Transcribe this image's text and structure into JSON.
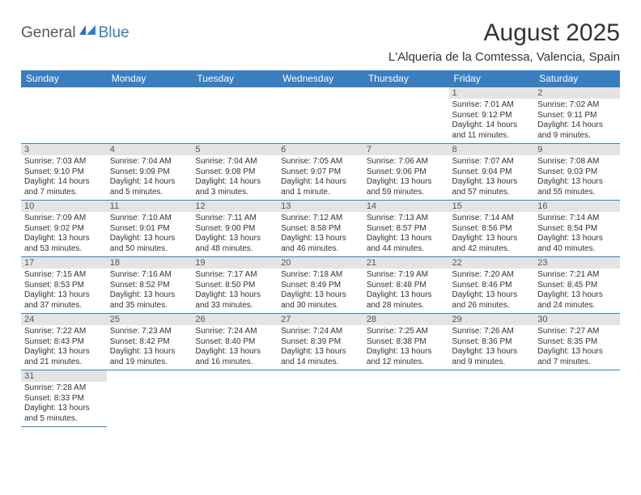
{
  "logo": {
    "general": "General",
    "blue": "Blue"
  },
  "title": "August 2025",
  "location": "L'Alqueria de la Comtessa, Valencia, Spain",
  "colors": {
    "header_bg": "#3a7ebf",
    "header_text": "#ffffff",
    "daynum_bg": "#e4e4e4",
    "border": "#3a7ebf",
    "text": "#333333",
    "logo_gray": "#57585a",
    "logo_blue": "#3a7ebf"
  },
  "weekdays": [
    "Sunday",
    "Monday",
    "Tuesday",
    "Wednesday",
    "Thursday",
    "Friday",
    "Saturday"
  ],
  "weeks": [
    [
      null,
      null,
      null,
      null,
      null,
      {
        "d": "1",
        "sr": "Sunrise: 7:01 AM",
        "ss": "Sunset: 9:12 PM",
        "dl1": "Daylight: 14 hours",
        "dl2": "and 11 minutes."
      },
      {
        "d": "2",
        "sr": "Sunrise: 7:02 AM",
        "ss": "Sunset: 9:11 PM",
        "dl1": "Daylight: 14 hours",
        "dl2": "and 9 minutes."
      }
    ],
    [
      {
        "d": "3",
        "sr": "Sunrise: 7:03 AM",
        "ss": "Sunset: 9:10 PM",
        "dl1": "Daylight: 14 hours",
        "dl2": "and 7 minutes."
      },
      {
        "d": "4",
        "sr": "Sunrise: 7:04 AM",
        "ss": "Sunset: 9:09 PM",
        "dl1": "Daylight: 14 hours",
        "dl2": "and 5 minutes."
      },
      {
        "d": "5",
        "sr": "Sunrise: 7:04 AM",
        "ss": "Sunset: 9:08 PM",
        "dl1": "Daylight: 14 hours",
        "dl2": "and 3 minutes."
      },
      {
        "d": "6",
        "sr": "Sunrise: 7:05 AM",
        "ss": "Sunset: 9:07 PM",
        "dl1": "Daylight: 14 hours",
        "dl2": "and 1 minute."
      },
      {
        "d": "7",
        "sr": "Sunrise: 7:06 AM",
        "ss": "Sunset: 9:06 PM",
        "dl1": "Daylight: 13 hours",
        "dl2": "and 59 minutes."
      },
      {
        "d": "8",
        "sr": "Sunrise: 7:07 AM",
        "ss": "Sunset: 9:04 PM",
        "dl1": "Daylight: 13 hours",
        "dl2": "and 57 minutes."
      },
      {
        "d": "9",
        "sr": "Sunrise: 7:08 AM",
        "ss": "Sunset: 9:03 PM",
        "dl1": "Daylight: 13 hours",
        "dl2": "and 55 minutes."
      }
    ],
    [
      {
        "d": "10",
        "sr": "Sunrise: 7:09 AM",
        "ss": "Sunset: 9:02 PM",
        "dl1": "Daylight: 13 hours",
        "dl2": "and 53 minutes."
      },
      {
        "d": "11",
        "sr": "Sunrise: 7:10 AM",
        "ss": "Sunset: 9:01 PM",
        "dl1": "Daylight: 13 hours",
        "dl2": "and 50 minutes."
      },
      {
        "d": "12",
        "sr": "Sunrise: 7:11 AM",
        "ss": "Sunset: 9:00 PM",
        "dl1": "Daylight: 13 hours",
        "dl2": "and 48 minutes."
      },
      {
        "d": "13",
        "sr": "Sunrise: 7:12 AM",
        "ss": "Sunset: 8:58 PM",
        "dl1": "Daylight: 13 hours",
        "dl2": "and 46 minutes."
      },
      {
        "d": "14",
        "sr": "Sunrise: 7:13 AM",
        "ss": "Sunset: 8:57 PM",
        "dl1": "Daylight: 13 hours",
        "dl2": "and 44 minutes."
      },
      {
        "d": "15",
        "sr": "Sunrise: 7:14 AM",
        "ss": "Sunset: 8:56 PM",
        "dl1": "Daylight: 13 hours",
        "dl2": "and 42 minutes."
      },
      {
        "d": "16",
        "sr": "Sunrise: 7:14 AM",
        "ss": "Sunset: 8:54 PM",
        "dl1": "Daylight: 13 hours",
        "dl2": "and 40 minutes."
      }
    ],
    [
      {
        "d": "17",
        "sr": "Sunrise: 7:15 AM",
        "ss": "Sunset: 8:53 PM",
        "dl1": "Daylight: 13 hours",
        "dl2": "and 37 minutes."
      },
      {
        "d": "18",
        "sr": "Sunrise: 7:16 AM",
        "ss": "Sunset: 8:52 PM",
        "dl1": "Daylight: 13 hours",
        "dl2": "and 35 minutes."
      },
      {
        "d": "19",
        "sr": "Sunrise: 7:17 AM",
        "ss": "Sunset: 8:50 PM",
        "dl1": "Daylight: 13 hours",
        "dl2": "and 33 minutes."
      },
      {
        "d": "20",
        "sr": "Sunrise: 7:18 AM",
        "ss": "Sunset: 8:49 PM",
        "dl1": "Daylight: 13 hours",
        "dl2": "and 30 minutes."
      },
      {
        "d": "21",
        "sr": "Sunrise: 7:19 AM",
        "ss": "Sunset: 8:48 PM",
        "dl1": "Daylight: 13 hours",
        "dl2": "and 28 minutes."
      },
      {
        "d": "22",
        "sr": "Sunrise: 7:20 AM",
        "ss": "Sunset: 8:46 PM",
        "dl1": "Daylight: 13 hours",
        "dl2": "and 26 minutes."
      },
      {
        "d": "23",
        "sr": "Sunrise: 7:21 AM",
        "ss": "Sunset: 8:45 PM",
        "dl1": "Daylight: 13 hours",
        "dl2": "and 24 minutes."
      }
    ],
    [
      {
        "d": "24",
        "sr": "Sunrise: 7:22 AM",
        "ss": "Sunset: 8:43 PM",
        "dl1": "Daylight: 13 hours",
        "dl2": "and 21 minutes."
      },
      {
        "d": "25",
        "sr": "Sunrise: 7:23 AM",
        "ss": "Sunset: 8:42 PM",
        "dl1": "Daylight: 13 hours",
        "dl2": "and 19 minutes."
      },
      {
        "d": "26",
        "sr": "Sunrise: 7:24 AM",
        "ss": "Sunset: 8:40 PM",
        "dl1": "Daylight: 13 hours",
        "dl2": "and 16 minutes."
      },
      {
        "d": "27",
        "sr": "Sunrise: 7:24 AM",
        "ss": "Sunset: 8:39 PM",
        "dl1": "Daylight: 13 hours",
        "dl2": "and 14 minutes."
      },
      {
        "d": "28",
        "sr": "Sunrise: 7:25 AM",
        "ss": "Sunset: 8:38 PM",
        "dl1": "Daylight: 13 hours",
        "dl2": "and 12 minutes."
      },
      {
        "d": "29",
        "sr": "Sunrise: 7:26 AM",
        "ss": "Sunset: 8:36 PM",
        "dl1": "Daylight: 13 hours",
        "dl2": "and 9 minutes."
      },
      {
        "d": "30",
        "sr": "Sunrise: 7:27 AM",
        "ss": "Sunset: 8:35 PM",
        "dl1": "Daylight: 13 hours",
        "dl2": "and 7 minutes."
      }
    ],
    [
      {
        "d": "31",
        "sr": "Sunrise: 7:28 AM",
        "ss": "Sunset: 8:33 PM",
        "dl1": "Daylight: 13 hours",
        "dl2": "and 5 minutes."
      },
      null,
      null,
      null,
      null,
      null,
      null
    ]
  ]
}
